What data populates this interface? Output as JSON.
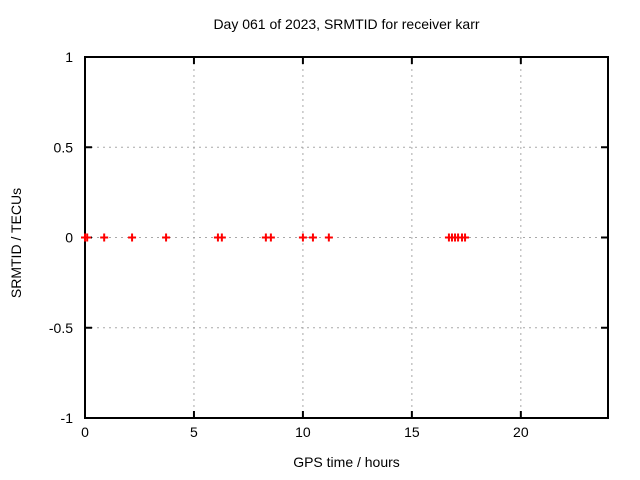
{
  "colors": {
    "background": "#ffffff",
    "axis": "#000000",
    "text": "#000000",
    "grid": "#a8a8a8",
    "marker": "#ff0000"
  },
  "chart_data": {
    "type": "scatter",
    "title": "Day 061 of 2023, SRMTID for receiver karr",
    "xlabel": "GPS time / hours",
    "ylabel": "SRMTID / TECUs",
    "xlim": [
      0,
      24
    ],
    "ylim": [
      -1,
      1
    ],
    "xticks": [
      0,
      5,
      10,
      15,
      20
    ],
    "yticks": [
      1,
      0.5,
      0,
      -0.5,
      -1
    ],
    "grid": {
      "visible": true,
      "style": "dashed",
      "color": "#a8a8a8"
    },
    "legend_position": "none",
    "series": [
      {
        "name": "SRMTID",
        "marker": "plus",
        "color": "#ff0000",
        "x": [
          0.0,
          0.1,
          0.88,
          2.16,
          3.72,
          6.1,
          6.28,
          8.3,
          8.53,
          10.0,
          10.46,
          11.19,
          16.7,
          16.84,
          16.98,
          17.12,
          17.3,
          17.44
        ],
        "y": [
          0,
          0,
          0,
          0,
          0,
          0,
          0,
          0,
          0,
          0,
          0,
          0,
          0,
          0,
          0,
          0,
          0,
          0
        ]
      }
    ]
  }
}
